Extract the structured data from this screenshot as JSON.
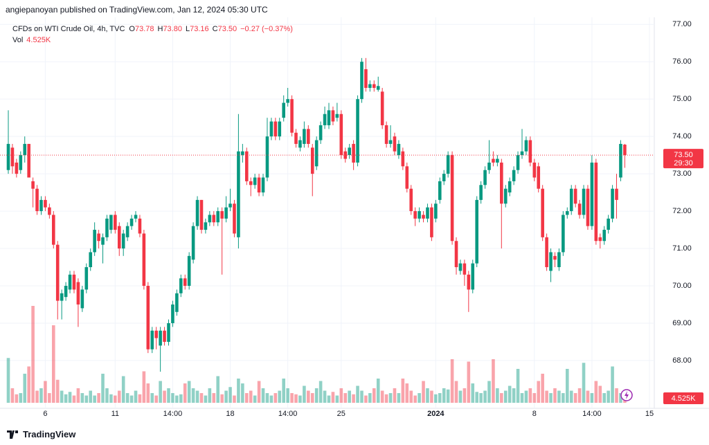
{
  "header": {
    "published": "angiepanoyan published on TradingView.com, Jan 12, 2024 05:30 UTC",
    "brand": "TradingView"
  },
  "legend": {
    "symbol": "CFDs on WTI Crude Oil, 4h, TVC",
    "items": [
      {
        "label": "O",
        "value": "73.78"
      },
      {
        "label": "H",
        "value": "73.80"
      },
      {
        "label": "L",
        "value": "73.16"
      },
      {
        "label": "C",
        "value": "73.50"
      }
    ],
    "change": "−0.27 (−0.37%)"
  },
  "chart_data": {
    "type": "candlestick",
    "up_color": "#089981",
    "down_color": "#f23645",
    "grid": true,
    "ylim": [
      66.72,
      77.19
    ],
    "yticks": [
      {
        "value": 68,
        "label": "68.00"
      },
      {
        "value": 69,
        "label": "69.00"
      },
      {
        "value": 70,
        "label": "70.00"
      },
      {
        "value": 71,
        "label": "71.00"
      },
      {
        "value": 72,
        "label": "72.00"
      },
      {
        "value": 73,
        "label": "73.00"
      },
      {
        "value": 74,
        "label": "74.00"
      },
      {
        "value": 75,
        "label": "75.00"
      },
      {
        "value": 76,
        "label": "76.00"
      },
      {
        "value": 77,
        "label": "77.00"
      }
    ],
    "categories": [
      null,
      null,
      null,
      null,
      null,
      null,
      null,
      null,
      null,
      "6",
      null,
      null,
      null,
      null,
      null,
      null,
      null,
      null,
      null,
      null,
      null,
      null,
      null,
      null,
      null,
      null,
      "11",
      null,
      null,
      null,
      null,
      null,
      null,
      null,
      null,
      null,
      null,
      null,
      null,
      null,
      "14:00",
      null,
      null,
      null,
      null,
      null,
      null,
      null,
      null,
      null,
      null,
      null,
      null,
      null,
      "18",
      null,
      null,
      null,
      null,
      null,
      null,
      null,
      null,
      null,
      null,
      null,
      null,
      null,
      "14:00",
      null,
      null,
      null,
      null,
      null,
      null,
      null,
      null,
      null,
      null,
      null,
      null,
      "25",
      null,
      null,
      null,
      null,
      null,
      null,
      null,
      null,
      null,
      null,
      null,
      null,
      null,
      null,
      null,
      null,
      null,
      null,
      null,
      null,
      null,
      null,
      "2024",
      null,
      null,
      null,
      null,
      null,
      null,
      null,
      null,
      null,
      null,
      null,
      null,
      null,
      null,
      null,
      null,
      null,
      null,
      null,
      null,
      null,
      null,
      null,
      "8",
      null,
      null,
      null,
      null,
      null,
      null,
      null,
      null,
      null,
      null,
      null,
      null,
      null,
      "14:00",
      null,
      null,
      null,
      null,
      null,
      null,
      null,
      null,
      null,
      null,
      null,
      null,
      null,
      "15"
    ],
    "open": [
      73.1,
      73.7,
      73.3,
      73.1,
      73.5,
      73.8,
      72.8,
      72.6,
      72.0,
      72.3,
      72.1,
      71.9,
      71.1,
      69.6,
      69.7,
      69.9,
      70.3,
      70.1,
      69.4,
      69.9,
      70.5,
      70.9,
      71.4,
      71.1,
      71.3,
      71.5,
      71.9,
      71.6,
      71.0,
      71.3,
      71.6,
      71.8,
      71.8,
      71.4,
      70.0,
      68.3,
      68.8,
      68.4,
      68.8,
      68.5,
      69.0,
      69.3,
      69.8,
      70.2,
      70.0,
      70.7,
      71.6,
      72.3,
      71.5,
      71.7,
      71.9,
      71.7,
      72.0,
      71.8,
      72.1,
      72.2,
      71.3,
      73.5,
      73.6,
      72.8,
      72.7,
      72.9,
      72.5,
      72.9,
      74.0,
      74.4,
      74.0,
      74.5,
      74.9,
      75.0,
      74.1,
      73.7,
      73.8,
      74.2,
      73.7,
      73.2,
      73.9,
      74.3,
      74.3,
      74.7,
      74.5,
      74.6,
      73.6,
      73.5,
      73.8,
      73.3,
      75.0,
      75.8,
      75.3,
      75.4,
      75.25,
      75.2,
      74.3,
      73.8,
      74.0,
      73.5,
      73.6,
      73.2,
      72.6,
      72.0,
      71.8,
      71.9,
      71.8,
      72.1,
      71.8,
      72.3,
      72.8,
      73.0,
      73.5,
      71.2,
      70.4,
      70.6,
      70.3,
      69.9,
      70.6,
      72.3,
      72.7,
      73.1,
      73.4,
      73.3,
      73.3,
      72.2,
      72.5,
      72.8,
      73.1,
      73.5,
      73.6,
      73.9,
      73.3,
      73.2,
      72.6,
      71.3,
      70.4,
      70.8,
      70.5,
      70.9,
      71.9,
      72.0,
      72.6,
      72.2,
      71.9,
      72.6,
      71.6,
      73.3,
      71.3,
      71.2,
      71.5,
      71.8,
      72.6,
      72.9,
      73.78,
      null,
      null,
      null,
      null,
      null,
      null
    ],
    "high": [
      74.7,
      73.8,
      73.4,
      73.6,
      74.0,
      73.8,
      72.9,
      72.7,
      72.4,
      72.4,
      72.2,
      72.0,
      71.2,
      69.9,
      70.1,
      70.4,
      70.4,
      70.2,
      70.0,
      70.6,
      71.0,
      71.7,
      71.5,
      71.4,
      71.9,
      71.9,
      72.0,
      71.7,
      71.5,
      71.7,
      71.9,
      72.0,
      71.9,
      71.5,
      70.1,
      68.9,
      68.9,
      68.9,
      68.9,
      69.1,
      69.6,
      69.9,
      70.3,
      70.3,
      70.9,
      71.7,
      72.4,
      72.3,
      71.8,
      72.0,
      72.0,
      72.1,
      72.1,
      72.4,
      72.6,
      72.3,
      74.6,
      73.8,
      73.7,
      72.9,
      73.0,
      73.0,
      73.0,
      74.5,
      74.5,
      74.5,
      74.5,
      75.1,
      75.3,
      75.1,
      74.2,
      74.0,
      74.4,
      74.3,
      73.8,
      74.0,
      74.4,
      74.8,
      74.9,
      74.8,
      74.9,
      74.7,
      73.7,
      73.8,
      73.9,
      75.1,
      76.1,
      76.1,
      75.5,
      75.5,
      75.6,
      75.3,
      74.4,
      74.3,
      74.1,
      73.9,
      73.7,
      73.3,
      72.7,
      72.1,
      72.1,
      72.0,
      72.2,
      72.2,
      72.3,
      72.9,
      73.1,
      73.6,
      73.6,
      71.3,
      70.7,
      70.7,
      70.4,
      70.7,
      72.4,
      72.8,
      73.2,
      73.9,
      73.6,
      73.5,
      73.4,
      72.7,
      72.9,
      73.2,
      73.6,
      74.2,
      74.0,
      74.0,
      73.4,
      73.3,
      72.7,
      71.4,
      71.0,
      70.9,
      71.0,
      72.0,
      72.1,
      72.7,
      72.7,
      72.3,
      72.7,
      72.7,
      73.5,
      73.4,
      71.4,
      71.6,
      71.9,
      72.7,
      73.0,
      73.9,
      73.8,
      null,
      null,
      null,
      null,
      null,
      null
    ],
    "low": [
      73.0,
      73.0,
      72.9,
      73.0,
      73.3,
      72.9,
      72.1,
      71.9,
      71.9,
      72.0,
      71.8,
      71.0,
      69.1,
      69.1,
      69.6,
      69.8,
      69.8,
      68.9,
      69.3,
      69.8,
      70.4,
      70.8,
      71.0,
      70.6,
      71.2,
      71.4,
      71.4,
      70.8,
      70.8,
      71.2,
      71.5,
      71.7,
      71.3,
      69.9,
      68.2,
      68.2,
      68.3,
      67.7,
      68.4,
      68.4,
      68.9,
      69.2,
      69.7,
      69.9,
      69.9,
      70.6,
      71.5,
      71.4,
      71.4,
      71.6,
      71.6,
      71.6,
      70.3,
      71.7,
      72.0,
      71.3,
      71.0,
      73.3,
      72.7,
      72.4,
      72.6,
      72.4,
      72.4,
      72.8,
      73.9,
      73.9,
      73.9,
      74.4,
      74.8,
      74.0,
      73.7,
      73.6,
      73.7,
      73.7,
      72.4,
      73.1,
      73.8,
      74.2,
      74.2,
      74.3,
      74.4,
      73.4,
      73.3,
      73.4,
      73.1,
      73.2,
      74.9,
      75.2,
      75.2,
      75.2,
      75.2,
      74.2,
      73.7,
      73.7,
      73.5,
      73.4,
      73.1,
      72.5,
      71.9,
      71.6,
      71.7,
      71.7,
      71.7,
      71.2,
      71.7,
      72.2,
      72.7,
      72.9,
      71.1,
      70.3,
      70.3,
      70.0,
      69.3,
      69.8,
      70.5,
      72.2,
      72.6,
      73.0,
      73.2,
      73.2,
      71.0,
      72.1,
      72.4,
      72.7,
      73.0,
      73.4,
      73.5,
      73.2,
      72.8,
      72.5,
      71.2,
      70.4,
      70.1,
      70.5,
      70.4,
      70.8,
      71.8,
      71.9,
      72.1,
      71.8,
      71.8,
      71.5,
      71.5,
      71.1,
      71.0,
      71.1,
      71.4,
      71.7,
      71.8,
      72.8,
      73.16,
      null,
      null,
      null,
      null,
      null,
      null
    ],
    "close": [
      73.8,
      73.2,
      73.0,
      73.5,
      73.8,
      72.9,
      72.6,
      72.0,
      72.3,
      72.1,
      71.9,
      71.1,
      69.6,
      69.8,
      70.0,
      70.3,
      69.9,
      69.5,
      69.9,
      70.5,
      70.9,
      71.5,
      71.2,
      71.3,
      71.8,
      71.9,
      71.5,
      71.0,
      71.4,
      71.6,
      71.8,
      71.9,
      71.4,
      70.0,
      68.3,
      68.8,
      68.6,
      68.8,
      68.5,
      69.0,
      69.5,
      69.8,
      70.2,
      70.0,
      70.8,
      71.6,
      72.3,
      71.5,
      71.7,
      71.9,
      71.7,
      72.0,
      71.8,
      72.1,
      72.2,
      71.4,
      73.6,
      73.6,
      72.8,
      72.7,
      72.9,
      72.5,
      72.9,
      74.0,
      74.4,
      74.0,
      74.4,
      74.9,
      75.0,
      74.1,
      73.8,
      73.9,
      74.2,
      73.8,
      73.0,
      73.9,
      74.3,
      74.6,
      74.7,
      74.4,
      74.6,
      73.5,
      73.4,
      73.7,
      73.3,
      75.0,
      76.0,
      75.3,
      75.4,
      75.3,
      75.35,
      74.3,
      73.8,
      73.9,
      73.6,
      73.8,
      73.2,
      72.6,
      72.0,
      71.8,
      72.0,
      71.8,
      72.1,
      71.3,
      72.2,
      72.8,
      73.0,
      73.5,
      71.2,
      70.5,
      70.6,
      70.3,
      69.9,
      70.6,
      72.3,
      72.7,
      73.1,
      73.3,
      73.3,
      73.4,
      72.2,
      72.6,
      72.8,
      73.1,
      73.5,
      73.6,
      73.9,
      73.3,
      72.9,
      72.6,
      71.3,
      70.5,
      70.9,
      70.7,
      70.9,
      71.9,
      72.0,
      72.6,
      72.2,
      71.9,
      72.6,
      71.6,
      73.3,
      71.2,
      71.2,
      71.5,
      71.8,
      72.6,
      72.3,
      73.8,
      73.5,
      null,
      null,
      null,
      null,
      null,
      null
    ],
    "last_price": {
      "value": 73.5,
      "label": "73.50",
      "countdown": "29:30"
    },
    "volume": {
      "name": "Vol",
      "last_label": "4.525K",
      "values": [
        18500,
        6000,
        3500,
        4000,
        12000,
        15000,
        40000,
        5000,
        6000,
        9000,
        4000,
        32000,
        9500,
        5000,
        3500,
        4500,
        3000,
        6000,
        4000,
        3000,
        5000,
        3000,
        4000,
        12000,
        6000,
        3500,
        3000,
        5000,
        11000,
        4000,
        3000,
        5000,
        3500,
        13000,
        8000,
        4000,
        3000,
        9000,
        5000,
        6000,
        4000,
        3000,
        3500,
        8000,
        9000,
        6000,
        5000,
        4000,
        3000,
        6000,
        4000,
        11000,
        3500,
        5000,
        6500,
        3000,
        10000,
        8000,
        4000,
        5000,
        3000,
        9000,
        6000,
        4000,
        3000,
        4000,
        5000,
        10000,
        6000,
        4000,
        3500,
        3000,
        7000,
        5000,
        4000,
        6000,
        9000,
        5000,
        3000,
        4500,
        3000,
        6000,
        4000,
        5000,
        3500,
        7000,
        5000,
        3000,
        4000,
        6000,
        10000,
        5000,
        3500,
        4000,
        6000,
        4000,
        10000,
        8000,
        5000,
        3000,
        4000,
        9000,
        6000,
        5000,
        3500,
        4000,
        6000,
        5500,
        18000,
        9000,
        5000,
        6000,
        17000,
        8000,
        4500,
        4000,
        5000,
        9000,
        18000,
        6000,
        4000,
        5000,
        7000,
        6000,
        14000,
        4000,
        5000,
        6000,
        4000,
        9000,
        12000,
        5000,
        4000,
        6000,
        5000,
        4000,
        14000,
        5000,
        4000,
        6000,
        16500,
        5000,
        4000,
        9000,
        7000,
        4000,
        5000,
        15000,
        6000,
        4000,
        4525,
        null,
        null,
        null,
        null,
        null,
        null
      ]
    }
  }
}
